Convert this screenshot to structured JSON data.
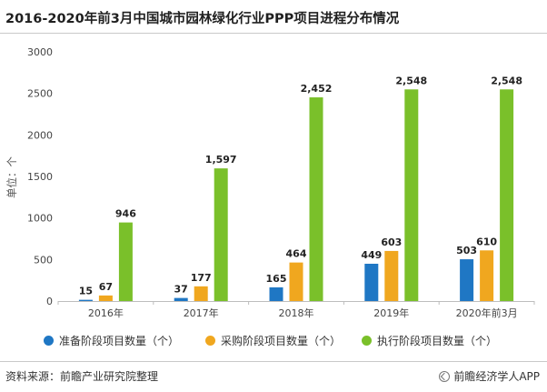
{
  "chart_data": {
    "type": "bar",
    "title": "2016-2020年前3月中国城市园林绿化行业PPP项目进程分布情况",
    "ylabel": "单位：个",
    "ylim": [
      0,
      3000
    ],
    "yticks": [
      "0",
      "500",
      "1000",
      "1500",
      "2000",
      "2500",
      "3000"
    ],
    "categories": [
      "2016年",
      "2017年",
      "2018年",
      "2019年",
      "2020年前3月"
    ],
    "series": [
      {
        "name": "准备阶段项目数量（个）",
        "color": "#1f77c4",
        "values": [
          15,
          37,
          165,
          449,
          503
        ],
        "labels": [
          "15",
          "37",
          "165",
          "449",
          "503"
        ]
      },
      {
        "name": "采购阶段项目数量（个）",
        "color": "#f0a71f",
        "values": [
          67,
          177,
          464,
          603,
          610
        ],
        "labels": [
          "67",
          "177",
          "464",
          "603",
          "610"
        ]
      },
      {
        "name": "执行阶段项目数量（个）",
        "color": "#7ac02a",
        "values": [
          946,
          1597,
          2452,
          2548,
          2548
        ],
        "labels": [
          "946",
          "1,597",
          "2,452",
          "2,548",
          "2,548"
        ]
      }
    ],
    "grid": false,
    "legend_position": "bottom"
  },
  "footer": {
    "source": "资料来源：前瞻产业研究院整理",
    "brand": "前瞻经济学人APP",
    "brand_icon": "brand-logo-icon"
  }
}
